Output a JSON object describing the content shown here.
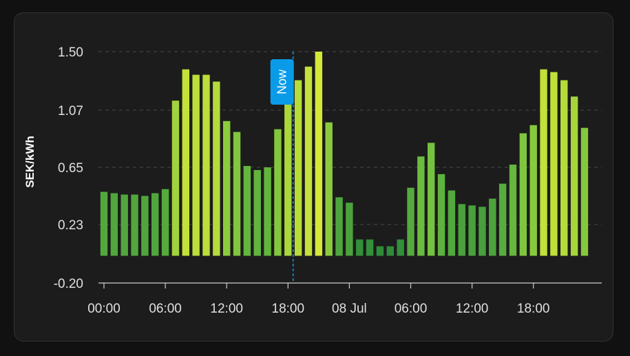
{
  "chart_data": {
    "type": "bar",
    "ylabel": "SEK/kWh",
    "xlabel": "",
    "ylim": [
      -0.2,
      1.5
    ],
    "yticks": [
      "1.50",
      "1.07",
      "0.65",
      "0.23",
      "-0.20"
    ],
    "xticks": [
      "00:00",
      "06:00",
      "12:00",
      "18:00",
      "08 Jul",
      "06:00",
      "12:00",
      "18:00"
    ],
    "grid": true,
    "now_label": "Now",
    "now_index": 18.5,
    "values": [
      0.47,
      0.46,
      0.45,
      0.45,
      0.44,
      0.46,
      0.49,
      1.14,
      1.37,
      1.33,
      1.33,
      1.28,
      0.99,
      0.91,
      0.66,
      0.63,
      0.65,
      0.93,
      1.21,
      1.29,
      1.39,
      1.5,
      0.98,
      0.43,
      0.39,
      0.12,
      0.12,
      0.07,
      0.07,
      0.12,
      0.5,
      0.73,
      0.83,
      0.6,
      0.48,
      0.38,
      0.37,
      0.36,
      0.42,
      0.53,
      0.67,
      0.9,
      0.96,
      1.37,
      1.35,
      1.29,
      1.17,
      0.94
    ],
    "color_scale": {
      "low": "#2e8b3a",
      "mid": "#6fbf3f",
      "high": "#d4e838"
    },
    "now_color": "#0a9be8"
  }
}
